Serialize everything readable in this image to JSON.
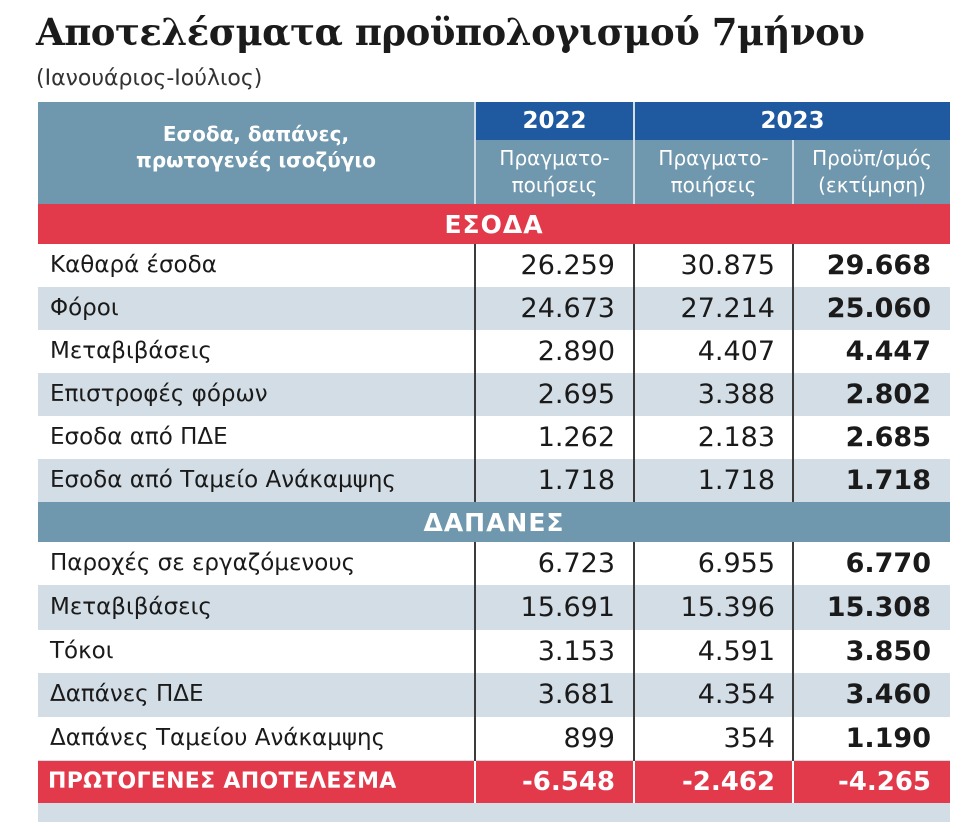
{
  "title": "Αποτελέσματα προϋπολογισμού 7μήνου",
  "subtitle": "(Ιανουάριος-Ιούλιος)",
  "header": {
    "row_label_line1": "Εσοδα, δαπάνες,",
    "row_label_line2": "πρωτογενές ισοζύγιο",
    "year_2022": "2022",
    "year_2023": "2023",
    "col1_line1": "Πραγματο-",
    "col1_line2": "ποιήσεις",
    "col2_line1": "Πραγματο-",
    "col2_line2": "ποιήσεις",
    "col3_line1": "Προϋπ/σμός",
    "col3_line2": "(εκτίμηση)"
  },
  "sections": {
    "revenue": "ΕΣΟΔΑ",
    "expenses": "ΔΑΠΑΝΕΣ"
  },
  "colors": {
    "section_red": "#e23a4a",
    "header_steel": "#6f97ad",
    "year_blue": "#1f5aa0",
    "stripe_grey": "#d3dde5"
  },
  "chart_data": {
    "type": "table",
    "columns": [
      "2022 Πραγματο-ποιήσεις",
      "2023 Πραγματο-ποιήσεις",
      "2023 Προϋπ/σμός (εκτίμηση)"
    ],
    "revenue_rows": [
      {
        "label": "Καθαρά έσοδα",
        "v2022": "26.259",
        "v2023": "30.875",
        "budget": "29.668"
      },
      {
        "label": "Φόροι",
        "v2022": "24.673",
        "v2023": "27.214",
        "budget": "25.060"
      },
      {
        "label": "Μεταβιβάσεις",
        "v2022": "2.890",
        "v2023": "4.407",
        "budget": "4.447"
      },
      {
        "label": "Επιστροφές φόρων",
        "v2022": "2.695",
        "v2023": "3.388",
        "budget": "2.802"
      },
      {
        "label": "Εσοδα από ΠΔΕ",
        "v2022": "1.262",
        "v2023": "2.183",
        "budget": "2.685"
      },
      {
        "label": "Εσοδα από Ταμείο Ανάκαμψης",
        "v2022": "1.718",
        "v2023": "1.718",
        "budget": "1.718"
      }
    ],
    "expense_rows": [
      {
        "label": "Παροχές σε εργαζόμενους",
        "v2022": "6.723",
        "v2023": "6.955",
        "budget": "6.770"
      },
      {
        "label": "Μεταβιβάσεις",
        "v2022": "15.691",
        "v2023": "15.396",
        "budget": "15.308"
      },
      {
        "label": "Τόκοι",
        "v2022": "3.153",
        "v2023": "4.591",
        "budget": "3.850"
      },
      {
        "label": "Δαπάνες ΠΔΕ",
        "v2022": "3.681",
        "v2023": "4.354",
        "budget": "3.460"
      },
      {
        "label": "Δαπάνες Ταμείου Ανάκαμψης",
        "v2022": "899",
        "v2023": "354",
        "budget": "1.190"
      }
    ],
    "total_row": {
      "label": "ΠΡΩΤΟΓΕΝΕΣ ΑΠΟΤΕΛΕΣΜΑ",
      "v2022": "-6.548",
      "v2023": "-2.462",
      "budget": "-4.265"
    }
  }
}
